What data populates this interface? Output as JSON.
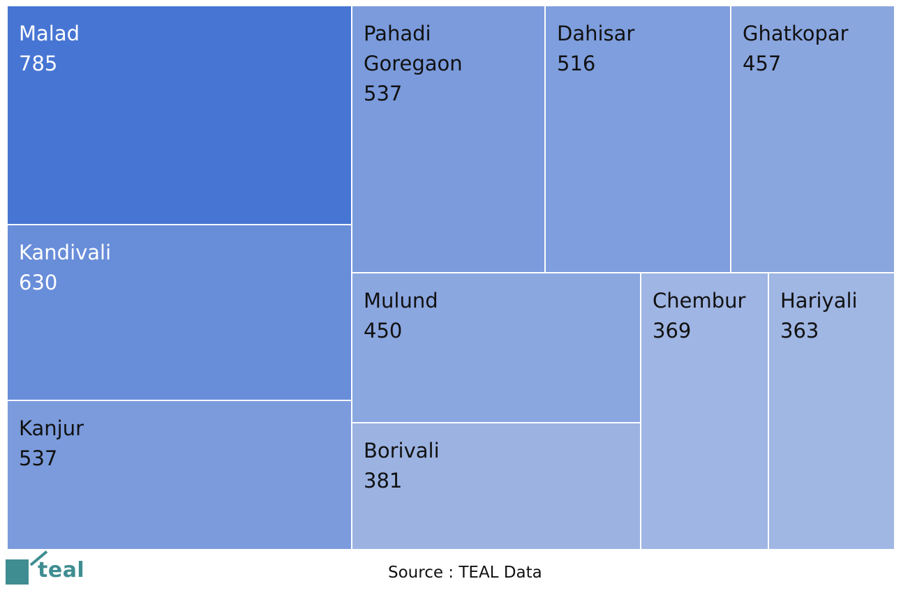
{
  "chart_data": {
    "type": "treemap",
    "title": "",
    "items": [
      {
        "name": "Malad",
        "value": 785,
        "color": "#4775d3"
      },
      {
        "name": "Kandivali",
        "value": 630,
        "color": "#688dd9"
      },
      {
        "name": "Kanjur",
        "value": 537,
        "color": "#7b9bdc"
      },
      {
        "name": "Pahadi\nGoregaon",
        "value": 537,
        "color": "#7b9bdc"
      },
      {
        "name": "Dahisar",
        "value": 516,
        "color": "#7f9edd"
      },
      {
        "name": "Ghatkopar",
        "value": 457,
        "color": "#8aa6df"
      },
      {
        "name": "Mulund",
        "value": 450,
        "color": "#8ba7e0"
      },
      {
        "name": "Borivali",
        "value": 381,
        "color": "#9cb3e2"
      },
      {
        "name": "Chembur",
        "value": 369,
        "color": "#9fb5e3"
      },
      {
        "name": "Hariyali",
        "value": 363,
        "color": "#a0b6e3"
      }
    ]
  },
  "footer": {
    "source": "Source : TEAL Data",
    "logo_text": "teal",
    "logo_color": "#3f8d91"
  }
}
